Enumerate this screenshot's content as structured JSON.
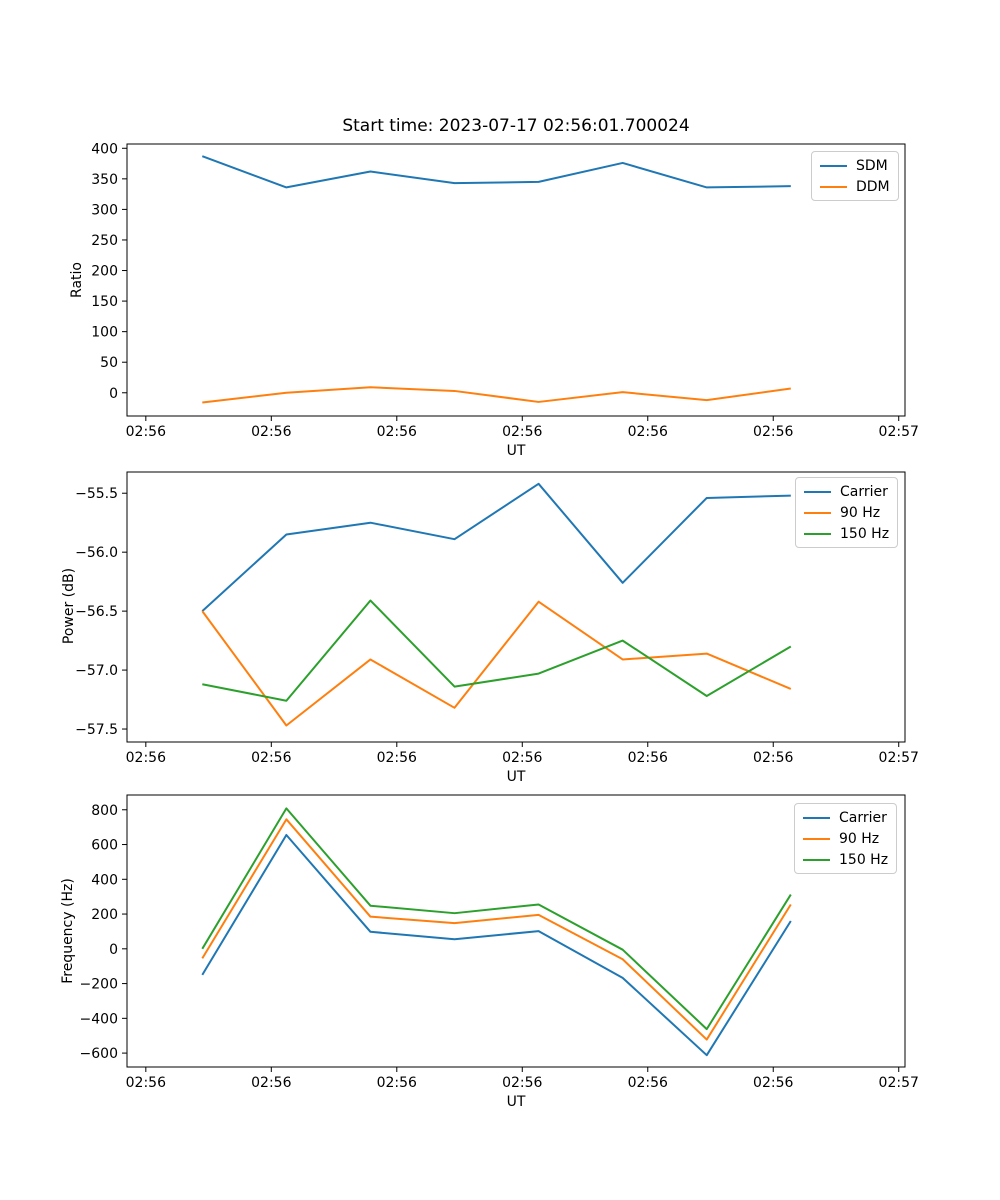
{
  "figure": {
    "title": "Start time: 2023-07-17 02:56:01.700024",
    "background_color": "#ffffff"
  },
  "chart_data": [
    {
      "type": "line",
      "title": "Start time: 2023-07-17 02:56:01.700024",
      "xlabel": "UT",
      "ylabel": "Ratio",
      "x": [
        4.5,
        11.2,
        17.9,
        24.6,
        31.3,
        38.0,
        44.7,
        51.4
      ],
      "series": [
        {
          "name": "SDM",
          "color": "#1f77b4",
          "values": [
            387,
            336,
            362,
            343,
            345,
            376,
            336,
            338
          ]
        },
        {
          "name": "DDM",
          "color": "#ff7f0e",
          "values": [
            -16,
            0,
            9,
            3,
            -15,
            1,
            -12,
            7
          ]
        }
      ],
      "xlim": [
        -1.5,
        60.5
      ],
      "ylim": [
        -38,
        407
      ],
      "xticks": [
        0,
        10,
        20,
        30,
        40,
        50,
        60
      ],
      "xtick_labels": [
        "02:56",
        "02:56",
        "02:56",
        "02:56",
        "02:56",
        "02:56",
        "02:57"
      ],
      "ytick_values": [
        0,
        50,
        100,
        150,
        200,
        250,
        300,
        350,
        400
      ],
      "ytick_labels": [
        "0",
        "50",
        "100",
        "150",
        "200",
        "250",
        "300",
        "350",
        "400"
      ],
      "legend": {
        "position": "upper right",
        "entries": [
          "SDM",
          "DDM"
        ]
      },
      "grid": false
    },
    {
      "type": "line",
      "title": "",
      "xlabel": "UT",
      "ylabel": "Power (dB)",
      "x": [
        4.5,
        11.2,
        17.9,
        24.6,
        31.3,
        38.0,
        44.7,
        51.4
      ],
      "series": [
        {
          "name": "Carrier",
          "color": "#1f77b4",
          "values": [
            -56.5,
            -55.85,
            -55.75,
            -55.89,
            -55.42,
            -56.26,
            -55.54,
            -55.52
          ]
        },
        {
          "name": "90 Hz",
          "color": "#ff7f0e",
          "values": [
            -56.5,
            -57.47,
            -56.91,
            -57.32,
            -56.42,
            -56.91,
            -56.86,
            -57.16
          ]
        },
        {
          "name": "150 Hz",
          "color": "#2ca02c",
          "values": [
            -57.12,
            -57.26,
            -56.41,
            -57.14,
            -57.03,
            -56.75,
            -57.22,
            -56.8
          ]
        }
      ],
      "xlim": [
        -1.5,
        60.5
      ],
      "ylim": [
        -57.61,
        -55.32
      ],
      "xticks": [
        0,
        10,
        20,
        30,
        40,
        50,
        60
      ],
      "xtick_labels": [
        "02:56",
        "02:56",
        "02:56",
        "02:56",
        "02:56",
        "02:56",
        "02:57"
      ],
      "ytick_values": [
        -57.5,
        -57.0,
        -56.5,
        -56.0,
        -55.5
      ],
      "ytick_labels": [
        "−57.5",
        "−57.0",
        "−56.5",
        "−56.0",
        "−55.5"
      ],
      "legend": {
        "position": "upper right",
        "entries": [
          "Carrier",
          "90 Hz",
          "150 Hz"
        ]
      },
      "grid": false
    },
    {
      "type": "line",
      "title": "",
      "xlabel": "UT",
      "ylabel": "Frequency (Hz)",
      "x": [
        4.5,
        11.2,
        17.9,
        24.6,
        31.3,
        38.0,
        44.7,
        51.4
      ],
      "series": [
        {
          "name": "Carrier",
          "color": "#1f77b4",
          "values": [
            -150,
            655,
            98,
            55,
            102,
            -167,
            -612,
            160
          ]
        },
        {
          "name": "90 Hz",
          "color": "#ff7f0e",
          "values": [
            -55,
            745,
            185,
            148,
            195,
            -60,
            -522,
            255
          ]
        },
        {
          "name": "150 Hz",
          "color": "#2ca02c",
          "values": [
            0,
            808,
            248,
            205,
            255,
            -5,
            -462,
            312
          ]
        }
      ],
      "xlim": [
        -1.5,
        60.5
      ],
      "ylim": [
        -680,
        885
      ],
      "xticks": [
        0,
        10,
        20,
        30,
        40,
        50,
        60
      ],
      "xtick_labels": [
        "02:56",
        "02:56",
        "02:56",
        "02:56",
        "02:56",
        "02:56",
        "02:57"
      ],
      "ytick_values": [
        -600,
        -400,
        -200,
        0,
        200,
        400,
        600,
        800
      ],
      "ytick_labels": [
        "−600",
        "−400",
        "−200",
        "0",
        "200",
        "400",
        "600",
        "800"
      ],
      "legend": {
        "position": "upper right",
        "entries": [
          "Carrier",
          "90 Hz",
          "150 Hz"
        ]
      },
      "grid": false
    }
  ]
}
